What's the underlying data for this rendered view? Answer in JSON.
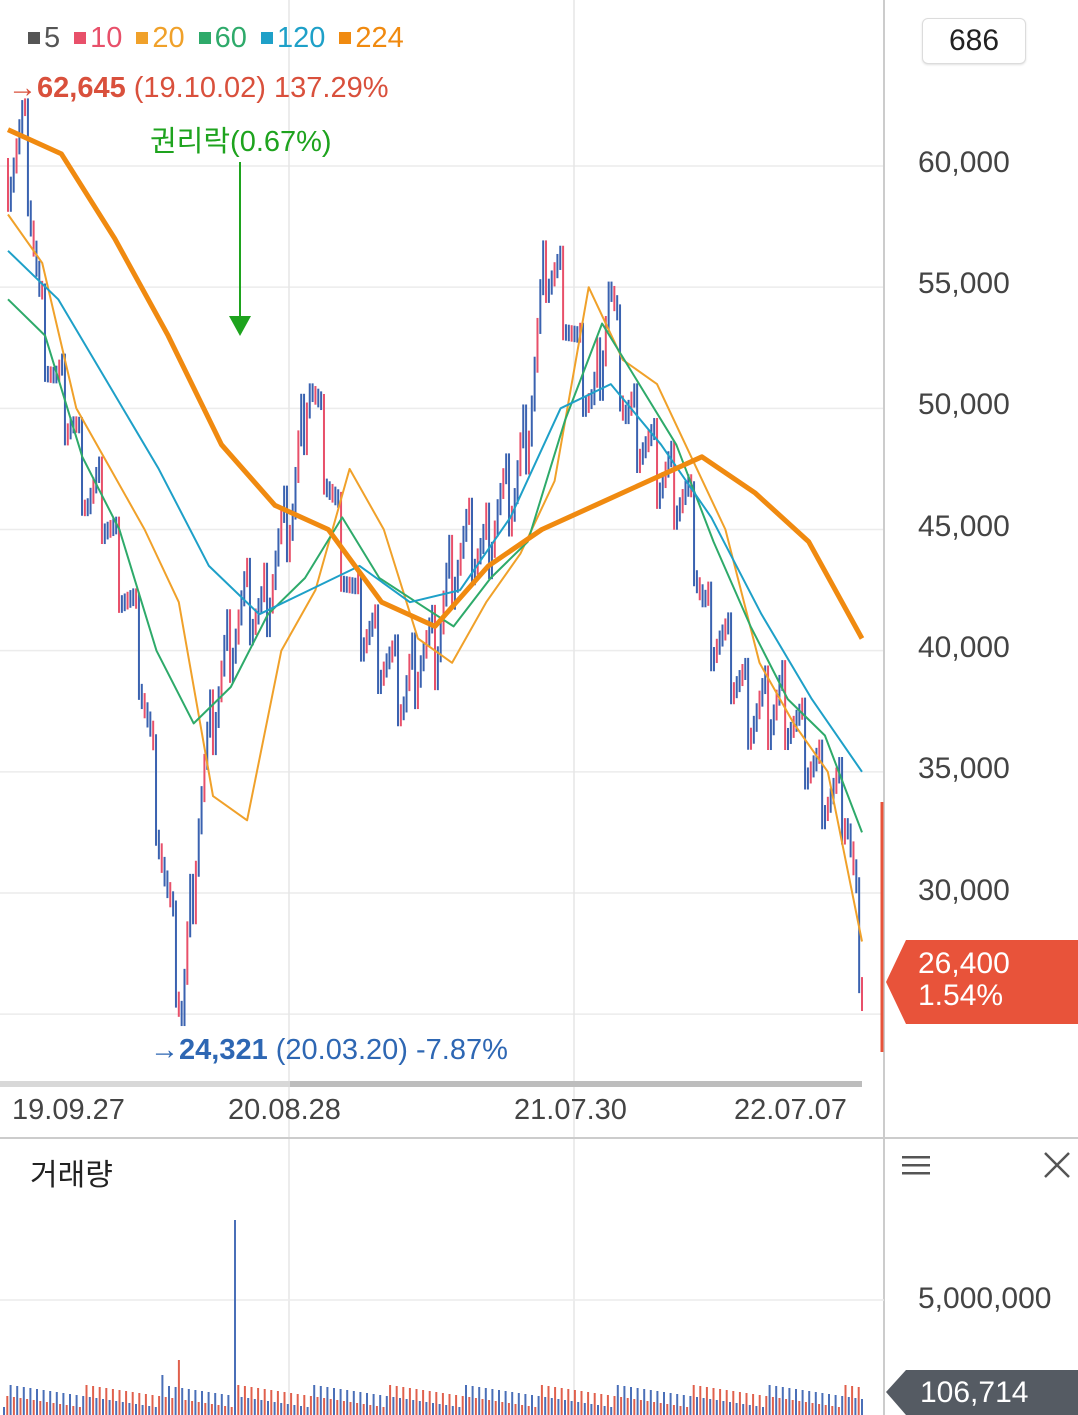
{
  "legend": [
    {
      "label": "5",
      "color": "#555555"
    },
    {
      "label": "10",
      "color": "#e8506a"
    },
    {
      "label": "20",
      "color": "#f0a12a"
    },
    {
      "label": "60",
      "color": "#2eaa6a"
    },
    {
      "label": "120",
      "color": "#1ea0c8"
    },
    {
      "label": "224",
      "color": "#f08a10"
    }
  ],
  "count_value": "686",
  "high_marker": {
    "arrow": "→",
    "price": "62,645",
    "detail": "(19.10.02) 137.29%"
  },
  "low_marker": {
    "arrow": "→",
    "price": "24,321",
    "detail": "(20.03.20) -7.87%"
  },
  "rights_label": "권리락(0.67%)",
  "y_ticks": [
    "60,000",
    "55,000",
    "50,000",
    "45,000",
    "40,000",
    "35,000",
    "30,000"
  ],
  "x_ticks": [
    "19.09.27",
    "20.08.28",
    "21.07.30",
    "22.07.07"
  ],
  "current_price": {
    "value": "26,400",
    "change": "1.54%"
  },
  "volume_panel": {
    "title": "거래량",
    "tick": "5,000,000",
    "current": "106,714"
  },
  "chart_data": {
    "type": "line",
    "series_type": "candlestick",
    "x_range": [
      "19.09.27",
      "22.07.07"
    ],
    "ylim": [
      23000,
      64000
    ],
    "grid": true,
    "price_close_points": [
      [
        "19.09.27",
        60000
      ],
      [
        "19.10.02",
        61500
      ],
      [
        "19.10.15",
        54000
      ],
      [
        "19.11.01",
        51000
      ],
      [
        "19.11.20",
        49500
      ],
      [
        "19.12.10",
        46500
      ],
      [
        "20.01.02",
        46000
      ],
      [
        "20.01.20",
        43500
      ],
      [
        "20.02.05",
        41000
      ],
      [
        "20.02.25",
        36000
      ],
      [
        "20.03.10",
        30000
      ],
      [
        "20.03.20",
        25000
      ],
      [
        "20.04.05",
        33000
      ],
      [
        "20.04.25",
        37500
      ],
      [
        "20.05.15",
        40500
      ],
      [
        "20.06.05",
        42000
      ],
      [
        "20.06.25",
        41500
      ],
      [
        "20.07.15",
        44000
      ],
      [
        "20.08.05",
        46000
      ],
      [
        "20.08.28",
        51500
      ],
      [
        "20.09.15",
        48000
      ],
      [
        "20.10.05",
        44500
      ],
      [
        "20.10.25",
        41500
      ],
      [
        "20.11.15",
        40500
      ],
      [
        "20.12.05",
        39500
      ],
      [
        "20.12.25",
        38000
      ],
      [
        "21.01.10",
        40000
      ],
      [
        "21.01.30",
        40000
      ],
      [
        "21.02.20",
        43500
      ],
      [
        "21.03.15",
        44500
      ],
      [
        "21.04.05",
        44000
      ],
      [
        "21.04.25",
        46000
      ],
      [
        "21.05.10",
        46500
      ],
      [
        "21.05.25",
        50000
      ],
      [
        "21.06.10",
        56000
      ],
      [
        "21.06.25",
        55000
      ],
      [
        "21.07.10",
        52000
      ],
      [
        "21.07.30",
        50000
      ],
      [
        "21.08.15",
        55000
      ],
      [
        "21.09.05",
        50000
      ],
      [
        "21.09.25",
        49000
      ],
      [
        "21.10.15",
        47500
      ],
      [
        "21.11.05",
        47000
      ],
      [
        "21.11.25",
        46000
      ],
      [
        "21.12.15",
        41500
      ],
      [
        "22.01.05",
        40500
      ],
      [
        "22.01.25",
        39000
      ],
      [
        "22.02.15",
        37500
      ],
      [
        "22.03.05",
        37500
      ],
      [
        "22.03.25",
        38000
      ],
      [
        "22.04.15",
        36500
      ],
      [
        "22.05.05",
        35000
      ],
      [
        "22.05.25",
        34000
      ],
      [
        "22.06.15",
        33500
      ],
      [
        "22.07.07",
        26500
      ]
    ],
    "moving_averages": [
      {
        "name": "20",
        "values": [
          58000,
          56000,
          50000,
          47500,
          45000,
          42000,
          34000,
          33000,
          40000,
          42500,
          47500,
          45000,
          40500,
          39500,
          42000,
          44000,
          47000,
          55000,
          52000,
          51000,
          48000,
          45000,
          39500,
          37000,
          35000,
          28000
        ]
      },
      {
        "name": "60",
        "values": [
          54500,
          53000,
          48000,
          45000,
          40000,
          37000,
          38500,
          41500,
          43000,
          45500,
          43000,
          42000,
          41000,
          43000,
          44500,
          49500,
          53500,
          51000,
          48500,
          44500,
          41000,
          38000,
          36500,
          32500
        ]
      },
      {
        "name": "120",
        "values": [
          56500,
          54500,
          51000,
          47500,
          43500,
          41500,
          42500,
          43500,
          42000,
          42500,
          45500,
          50000,
          51000,
          48500,
          45500,
          41500,
          38000,
          35000
        ]
      },
      {
        "name": "224",
        "values": [
          61500,
          60500,
          57000,
          53000,
          48500,
          46000,
          45000,
          42000,
          41000,
          43500,
          45000,
          46000,
          47000,
          48000,
          46500,
          44500,
          40500
        ]
      }
    ]
  }
}
